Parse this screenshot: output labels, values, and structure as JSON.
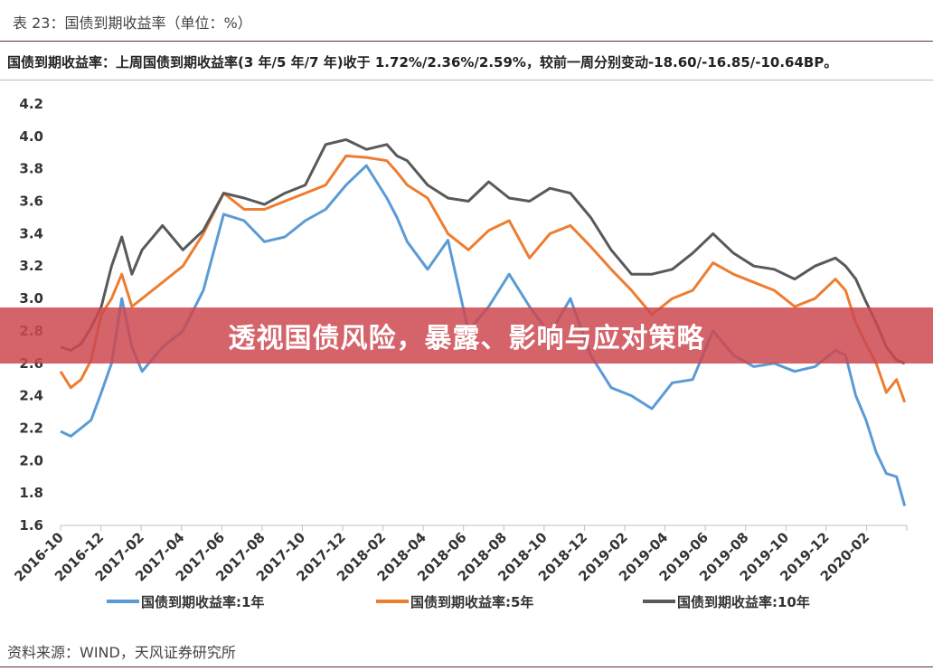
{
  "figure_caption": "表 23：国债到期收益率（单位：%）",
  "subtitle": "国债到期收益率：上周国债到期收益率(3 年/5 年/7 年)收于 1.72%/2.36%/2.59%，较前一周分别变动-18.60/-16.85/-10.64BP。",
  "banner_title": "透视国债风险，暴露、影响与应对策略",
  "source": "资料来源：WIND，天风证券研究所",
  "chart_data": {
    "type": "line",
    "title": "",
    "xlabel": "",
    "ylabel": "",
    "ylim": [
      1.6,
      4.2
    ],
    "yticks": [
      "1.6",
      "1.8",
      "2.0",
      "2.2",
      "2.4",
      "2.6",
      "2.8",
      "3.0",
      "3.2",
      "3.4",
      "3.6",
      "3.8",
      "4.0",
      "4.2"
    ],
    "xticks": [
      "2016-10",
      "2016-12",
      "2017-02",
      "2017-04",
      "2017-06",
      "2017-08",
      "2017-10",
      "2017-12",
      "2018-02",
      "2018-04",
      "2018-06",
      "2018-08",
      "2018-10",
      "2018-12",
      "2019-02",
      "2019-04",
      "2019-06",
      "2019-08",
      "2019-10",
      "2019-12",
      "2020-02"
    ],
    "xrange": [
      0,
      41.5
    ],
    "grid": false,
    "legend_position": "bottom",
    "series": [
      {
        "name": "国债到期收益率:1年",
        "color": "#5b9bd5",
        "x": [
          0,
          0.5,
          1,
          1.5,
          2,
          2.5,
          3,
          3.5,
          4,
          5,
          6,
          7,
          8,
          9,
          10,
          11,
          12,
          13,
          14,
          15,
          16,
          16.5,
          17,
          18,
          19,
          20,
          21,
          22,
          23,
          24,
          25,
          26,
          27,
          28,
          29,
          30,
          31,
          32,
          33,
          34,
          35,
          36,
          37,
          38,
          38.5,
          39,
          39.5,
          40,
          40.5,
          41,
          41.4
        ],
        "y": [
          2.18,
          2.15,
          2.2,
          2.25,
          2.42,
          2.6,
          3.0,
          2.7,
          2.55,
          2.7,
          2.8,
          3.05,
          3.52,
          3.48,
          3.35,
          3.38,
          3.48,
          3.55,
          3.7,
          3.82,
          3.62,
          3.5,
          3.35,
          3.18,
          3.36,
          2.8,
          2.95,
          3.15,
          2.95,
          2.78,
          3.0,
          2.65,
          2.45,
          2.4,
          2.32,
          2.48,
          2.5,
          2.8,
          2.65,
          2.58,
          2.6,
          2.55,
          2.58,
          2.68,
          2.65,
          2.4,
          2.25,
          2.05,
          1.92,
          1.9,
          1.72
        ]
      },
      {
        "name": "国债到期收益率:5年",
        "color": "#ed7d31",
        "x": [
          0,
          0.5,
          1,
          1.5,
          2,
          2.5,
          3,
          3.5,
          4,
          5,
          6,
          7,
          8,
          9,
          10,
          11,
          12,
          13,
          14,
          15,
          16,
          16.5,
          17,
          18,
          19,
          20,
          21,
          22,
          23,
          24,
          25,
          26,
          27,
          28,
          29,
          30,
          31,
          32,
          33,
          34,
          35,
          36,
          37,
          38,
          38.5,
          39,
          39.5,
          40,
          40.5,
          41,
          41.4
        ],
        "y": [
          2.55,
          2.45,
          2.5,
          2.62,
          2.9,
          3.0,
          3.15,
          2.95,
          3.0,
          3.1,
          3.2,
          3.4,
          3.65,
          3.55,
          3.55,
          3.6,
          3.65,
          3.7,
          3.88,
          3.87,
          3.85,
          3.78,
          3.7,
          3.62,
          3.4,
          3.3,
          3.42,
          3.48,
          3.25,
          3.4,
          3.45,
          3.32,
          3.18,
          3.05,
          2.9,
          3.0,
          3.05,
          3.22,
          3.15,
          3.1,
          3.05,
          2.95,
          3.0,
          3.12,
          3.05,
          2.85,
          2.72,
          2.6,
          2.42,
          2.5,
          2.36
        ]
      },
      {
        "name": "国债到期收益率:10年",
        "color": "#595959",
        "x": [
          0,
          0.5,
          1,
          1.5,
          2,
          2.5,
          3,
          3.5,
          4,
          5,
          6,
          7,
          8,
          9,
          10,
          11,
          12,
          13,
          14,
          15,
          16,
          16.5,
          17,
          18,
          19,
          20,
          21,
          22,
          23,
          24,
          25,
          26,
          27,
          28,
          29,
          30,
          31,
          32,
          33,
          34,
          35,
          36,
          37,
          38,
          38.5,
          39,
          39.5,
          40,
          40.5,
          41,
          41.4
        ],
        "y": [
          2.7,
          2.68,
          2.72,
          2.82,
          2.95,
          3.2,
          3.38,
          3.15,
          3.3,
          3.45,
          3.3,
          3.42,
          3.65,
          3.62,
          3.58,
          3.65,
          3.7,
          3.95,
          3.98,
          3.92,
          3.95,
          3.88,
          3.85,
          3.7,
          3.62,
          3.6,
          3.72,
          3.62,
          3.6,
          3.68,
          3.65,
          3.5,
          3.3,
          3.15,
          3.15,
          3.18,
          3.28,
          3.4,
          3.28,
          3.2,
          3.18,
          3.12,
          3.2,
          3.25,
          3.2,
          3.12,
          2.98,
          2.85,
          2.7,
          2.62,
          2.6
        ]
      }
    ]
  }
}
